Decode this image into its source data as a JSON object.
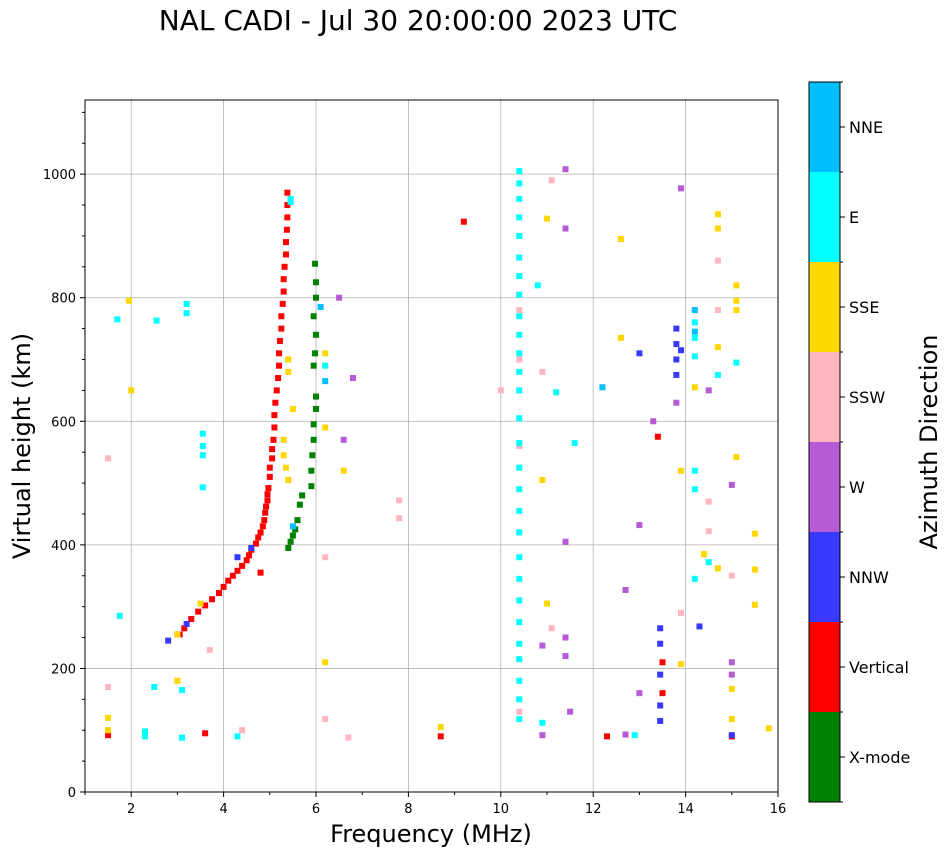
{
  "chart_data": {
    "type": "scatter",
    "title": "NAL CADI - Jul 30 20:00:00 2023 UTC",
    "xlabel": "Frequency (MHz)",
    "ylabel": "Virtual height (km)",
    "xlim": [
      1,
      16
    ],
    "ylim": [
      0,
      1120
    ],
    "xticks": [
      2,
      4,
      6,
      8,
      10,
      12,
      14,
      16
    ],
    "yticks": [
      0,
      200,
      400,
      600,
      800,
      1000
    ],
    "grid": true,
    "colorbar": {
      "label": "Azimuth Direction",
      "categories": [
        {
          "name": "X-mode",
          "color": "#008000"
        },
        {
          "name": "Vertical",
          "color": "#ff0000"
        },
        {
          "name": "NNW",
          "color": "#3838ff"
        },
        {
          "name": "W",
          "color": "#b65ad6"
        },
        {
          "name": "SSW",
          "color": "#ffb6c1"
        },
        {
          "name": "SSE",
          "color": "#ffd700"
        },
        {
          "name": "E",
          "color": "#00ffff"
        },
        {
          "name": "NNE",
          "color": "#00bfff"
        }
      ]
    },
    "series": [
      {
        "name": "Vertical",
        "points": [
          [
            3.05,
            255
          ],
          [
            3.15,
            265
          ],
          [
            3.3,
            280
          ],
          [
            3.45,
            292
          ],
          [
            3.6,
            302
          ],
          [
            3.75,
            312
          ],
          [
            3.9,
            322
          ],
          [
            4.0,
            332
          ],
          [
            4.1,
            342
          ],
          [
            4.2,
            350
          ],
          [
            4.3,
            358
          ],
          [
            4.4,
            366
          ],
          [
            4.5,
            375
          ],
          [
            4.55,
            383
          ],
          [
            4.6,
            392
          ],
          [
            4.7,
            402
          ],
          [
            4.75,
            412
          ],
          [
            4.8,
            420
          ],
          [
            4.85,
            430
          ],
          [
            4.88,
            440
          ],
          [
            4.9,
            452
          ],
          [
            4.92,
            462
          ],
          [
            4.95,
            472
          ],
          [
            4.95,
            482
          ],
          [
            4.97,
            492
          ],
          [
            5.0,
            510
          ],
          [
            5.0,
            525
          ],
          [
            5.05,
            540
          ],
          [
            5.05,
            555
          ],
          [
            5.08,
            570
          ],
          [
            5.1,
            590
          ],
          [
            5.1,
            610
          ],
          [
            5.12,
            630
          ],
          [
            5.15,
            650
          ],
          [
            5.18,
            670
          ],
          [
            5.2,
            690
          ],
          [
            5.2,
            710
          ],
          [
            5.22,
            730
          ],
          [
            5.25,
            750
          ],
          [
            5.25,
            770
          ],
          [
            5.28,
            790
          ],
          [
            5.3,
            810
          ],
          [
            5.3,
            830
          ],
          [
            5.32,
            850
          ],
          [
            5.35,
            870
          ],
          [
            5.35,
            890
          ],
          [
            5.37,
            910
          ],
          [
            5.38,
            930
          ],
          [
            5.38,
            950
          ],
          [
            5.38,
            970
          ],
          [
            4.8,
            355
          ],
          [
            3.6,
            95
          ],
          [
            1.5,
            92
          ],
          [
            8.7,
            90
          ],
          [
            9.2,
            923
          ],
          [
            12.3,
            90
          ],
          [
            15.0,
            90
          ],
          [
            13.4,
            575
          ],
          [
            13.5,
            160
          ],
          [
            13.5,
            210
          ]
        ]
      },
      {
        "name": "X-mode",
        "points": [
          [
            5.4,
            395
          ],
          [
            5.45,
            405
          ],
          [
            5.5,
            415
          ],
          [
            5.55,
            425
          ],
          [
            5.6,
            440
          ],
          [
            5.65,
            465
          ],
          [
            5.7,
            480
          ],
          [
            5.9,
            495
          ],
          [
            5.9,
            520
          ],
          [
            5.92,
            545
          ],
          [
            5.95,
            570
          ],
          [
            5.95,
            595
          ],
          [
            6.0,
            620
          ],
          [
            6.0,
            640
          ],
          [
            5.95,
            690
          ],
          [
            5.98,
            710
          ],
          [
            6.0,
            740
          ],
          [
            5.95,
            770
          ],
          [
            6.0,
            800
          ],
          [
            6.0,
            825
          ],
          [
            5.98,
            855
          ]
        ]
      },
      {
        "name": "NNW",
        "points": [
          [
            2.8,
            245
          ],
          [
            3.0,
            255
          ],
          [
            3.2,
            272
          ],
          [
            4.3,
            380
          ],
          [
            4.6,
            395
          ],
          [
            13.0,
            710
          ],
          [
            13.9,
            715
          ],
          [
            14.3,
            268
          ],
          [
            15.0,
            92
          ],
          [
            13.45,
            115
          ],
          [
            13.45,
            140
          ],
          [
            13.45,
            190
          ],
          [
            13.45,
            240
          ],
          [
            13.45,
            265
          ],
          [
            13.8,
            675
          ],
          [
            13.8,
            700
          ],
          [
            13.8,
            725
          ],
          [
            13.8,
            750
          ]
        ]
      },
      {
        "name": "W",
        "points": [
          [
            6.5,
            800
          ],
          [
            6.6,
            570
          ],
          [
            6.8,
            670
          ],
          [
            13.3,
            600
          ],
          [
            13.0,
            432
          ],
          [
            12.7,
            327
          ],
          [
            12.7,
            93
          ],
          [
            13.0,
            160
          ],
          [
            13.8,
            630
          ],
          [
            13.9,
            977
          ],
          [
            14.5,
            650
          ],
          [
            15.0,
            497
          ],
          [
            15.0,
            210
          ],
          [
            15.0,
            190
          ],
          [
            11.4,
            405
          ],
          [
            11.4,
            250
          ],
          [
            11.4,
            220
          ],
          [
            11.5,
            130
          ],
          [
            11.4,
            1008
          ],
          [
            11.4,
            912
          ],
          [
            10.9,
            92
          ],
          [
            10.9,
            237
          ]
        ]
      },
      {
        "name": "SSW",
        "points": [
          [
            1.5,
            170
          ],
          [
            1.5,
            540
          ],
          [
            3.7,
            230
          ],
          [
            4.4,
            100
          ],
          [
            6.2,
            380
          ],
          [
            6.2,
            118
          ],
          [
            6.7,
            88
          ],
          [
            7.8,
            443
          ],
          [
            7.8,
            472
          ],
          [
            10.0,
            650
          ],
          [
            10.4,
            780
          ],
          [
            10.4,
            700
          ],
          [
            10.4,
            560
          ],
          [
            10.4,
            130
          ],
          [
            10.9,
            680
          ],
          [
            11.1,
            990
          ],
          [
            11.1,
            265
          ],
          [
            13.9,
            290
          ],
          [
            14.5,
            470
          ],
          [
            14.5,
            422
          ],
          [
            14.7,
            860
          ],
          [
            14.7,
            780
          ],
          [
            15.0,
            350
          ]
        ]
      },
      {
        "name": "SSE",
        "points": [
          [
            1.5,
            120
          ],
          [
            1.5,
            100
          ],
          [
            3.0,
            180
          ],
          [
            3.0,
            255
          ],
          [
            3.5,
            305
          ],
          [
            5.4,
            700
          ],
          [
            5.4,
            680
          ],
          [
            5.3,
            570
          ],
          [
            5.3,
            545
          ],
          [
            5.35,
            525
          ],
          [
            5.4,
            505
          ],
          [
            5.5,
            620
          ],
          [
            6.2,
            710
          ],
          [
            6.2,
            690
          ],
          [
            6.2,
            590
          ],
          [
            6.2,
            210
          ],
          [
            6.6,
            520
          ],
          [
            8.7,
            105
          ],
          [
            10.9,
            505
          ],
          [
            11.0,
            928
          ],
          [
            11.0,
            305
          ],
          [
            12.6,
            895
          ],
          [
            12.6,
            735
          ],
          [
            13.9,
            520
          ],
          [
            13.9,
            207
          ],
          [
            14.2,
            655
          ],
          [
            14.2,
            780
          ],
          [
            14.4,
            385
          ],
          [
            14.7,
            935
          ],
          [
            14.7,
            912
          ],
          [
            14.7,
            720
          ],
          [
            14.7,
            362
          ],
          [
            15.1,
            820
          ],
          [
            15.1,
            795
          ],
          [
            15.1,
            780
          ],
          [
            15.1,
            542
          ],
          [
            15.5,
            418
          ],
          [
            15.5,
            360
          ],
          [
            15.5,
            303
          ],
          [
            15.0,
            167
          ],
          [
            15.0,
            118
          ],
          [
            15.8,
            103
          ],
          [
            1.95,
            795
          ],
          [
            2.0,
            650
          ]
        ]
      },
      {
        "name": "E",
        "points": [
          [
            1.7,
            765
          ],
          [
            1.75,
            285
          ],
          [
            2.3,
            90
          ],
          [
            2.3,
            98
          ],
          [
            2.5,
            170
          ],
          [
            2.55,
            763
          ],
          [
            3.2,
            790
          ],
          [
            3.2,
            775
          ],
          [
            3.1,
            165
          ],
          [
            3.1,
            88
          ],
          [
            3.55,
            493
          ],
          [
            3.55,
            580
          ],
          [
            3.55,
            560
          ],
          [
            3.55,
            545
          ],
          [
            4.3,
            90
          ],
          [
            5.45,
            955
          ],
          [
            5.45,
            960
          ],
          [
            6.2,
            690
          ],
          [
            10.4,
            1005
          ],
          [
            10.4,
            985
          ],
          [
            10.4,
            960
          ],
          [
            10.4,
            930
          ],
          [
            10.4,
            900
          ],
          [
            10.4,
            865
          ],
          [
            10.4,
            835
          ],
          [
            10.4,
            805
          ],
          [
            10.4,
            770
          ],
          [
            10.4,
            740
          ],
          [
            10.4,
            710
          ],
          [
            10.4,
            680
          ],
          [
            10.4,
            650
          ],
          [
            10.4,
            605
          ],
          [
            10.4,
            565
          ],
          [
            10.4,
            525
          ],
          [
            10.4,
            490
          ],
          [
            10.4,
            455
          ],
          [
            10.4,
            420
          ],
          [
            10.4,
            380
          ],
          [
            10.4,
            345
          ],
          [
            10.4,
            310
          ],
          [
            10.4,
            275
          ],
          [
            10.4,
            240
          ],
          [
            10.4,
            215
          ],
          [
            10.4,
            180
          ],
          [
            10.4,
            150
          ],
          [
            10.4,
            118
          ],
          [
            10.8,
            820
          ],
          [
            10.9,
            112
          ],
          [
            11.2,
            647
          ],
          [
            11.6,
            565
          ],
          [
            12.9,
            92
          ],
          [
            14.2,
            760
          ],
          [
            14.2,
            735
          ],
          [
            14.2,
            705
          ],
          [
            14.2,
            520
          ],
          [
            14.2,
            490
          ],
          [
            14.2,
            345
          ],
          [
            14.5,
            372
          ],
          [
            14.7,
            675
          ],
          [
            15.1,
            695
          ]
        ]
      },
      {
        "name": "NNE",
        "points": [
          [
            6.2,
            665
          ],
          [
            6.1,
            785
          ],
          [
            12.2,
            655
          ],
          [
            14.2,
            780
          ],
          [
            14.2,
            745
          ],
          [
            5.5,
            430
          ]
        ]
      }
    ]
  }
}
